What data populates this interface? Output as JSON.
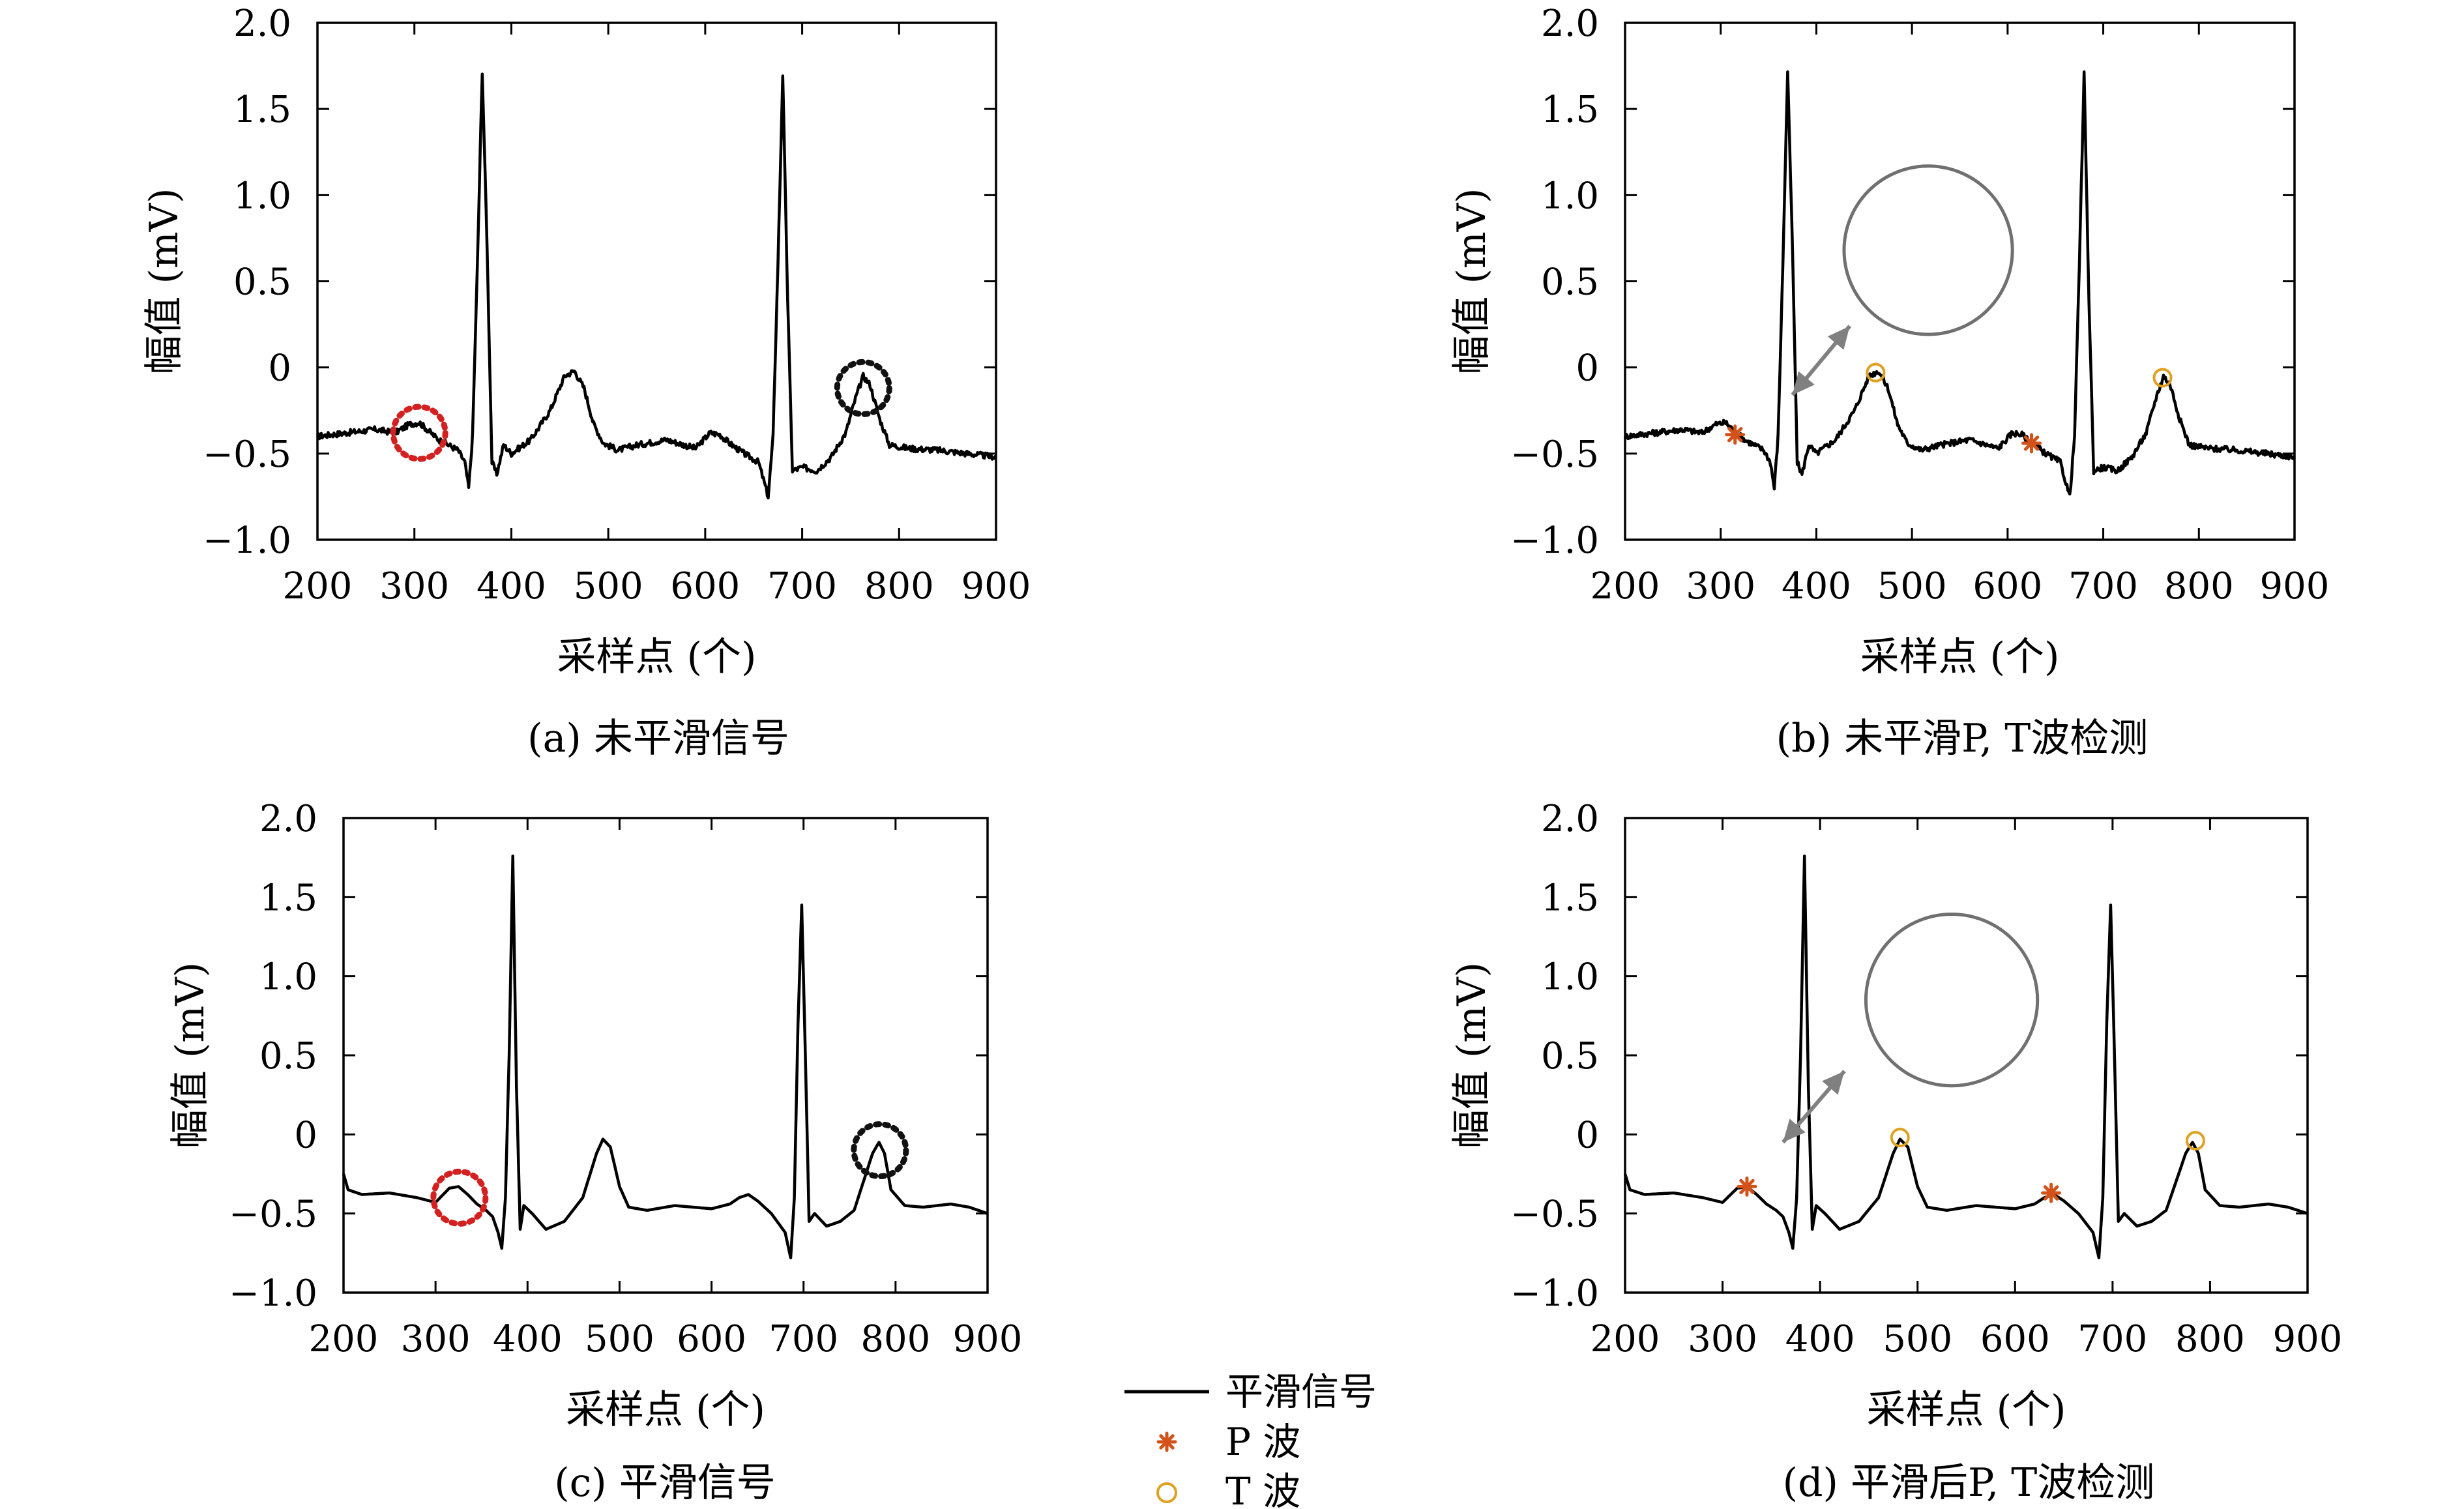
{
  "chart_data": [
    {
      "id": "a",
      "type": "line",
      "caption": "(a) 未平滑信号",
      "xlabel": "采样点 (个)",
      "ylabel": "幅值 (mV)",
      "xlim": [
        200,
        900
      ],
      "ylim": [
        -1.0,
        2.0
      ],
      "xticks": [
        "200",
        "300",
        "400",
        "500",
        "600",
        "700",
        "800",
        "900"
      ],
      "yticks": [
        "−1.0",
        "−0.5",
        "0",
        "0.5",
        "1.0",
        "1.5",
        "2.0"
      ],
      "grid": false,
      "noisy": true,
      "series": [
        {
          "x": [
            200,
            230,
            260,
            280,
            295,
            305,
            315,
            325,
            335,
            345,
            352,
            356,
            360,
            365,
            370,
            375,
            380,
            385,
            392,
            400,
            420,
            440,
            455,
            465,
            475,
            485,
            495,
            510,
            530,
            560,
            590,
            605,
            615,
            625,
            640,
            655,
            665,
            670,
            675,
            680,
            685,
            690,
            700,
            715,
            730,
            745,
            755,
            763,
            770,
            780,
            790,
            810,
            840,
            870,
            900
          ],
          "y": [
            -0.4,
            -0.38,
            -0.36,
            -0.38,
            -0.33,
            -0.32,
            -0.37,
            -0.42,
            -0.45,
            -0.48,
            -0.55,
            -0.7,
            -0.4,
            0.6,
            1.72,
            0.7,
            -0.55,
            -0.62,
            -0.45,
            -0.5,
            -0.42,
            -0.25,
            -0.05,
            -0.02,
            -0.12,
            -0.33,
            -0.44,
            -0.48,
            -0.45,
            -0.42,
            -0.47,
            -0.38,
            -0.39,
            -0.44,
            -0.5,
            -0.55,
            -0.75,
            -0.4,
            0.6,
            1.7,
            0.4,
            -0.6,
            -0.58,
            -0.6,
            -0.52,
            -0.38,
            -0.18,
            -0.05,
            -0.1,
            -0.3,
            -0.45,
            -0.47,
            -0.48,
            -0.5,
            -0.52
          ]
        }
      ],
      "highlights": [
        {
          "x": 305,
          "y": -0.38,
          "color": "#d32020"
        },
        {
          "x": 763,
          "y": -0.12,
          "color": "#111111"
        }
      ]
    },
    {
      "id": "b",
      "type": "line",
      "caption": "(b) 未平滑P, T波检测",
      "xlabel": "采样点 (个)",
      "ylabel": "幅值 (mV)",
      "xlim": [
        200,
        900
      ],
      "ylim": [
        -1.0,
        2.0
      ],
      "xticks": [
        "200",
        "300",
        "400",
        "500",
        "600",
        "700",
        "800",
        "900"
      ],
      "yticks": [
        "−1.0",
        "−0.5",
        "0",
        "0.5",
        "1.0",
        "1.5",
        "2.0"
      ],
      "grid": false,
      "noisy": true,
      "series": [
        {
          "x": [
            200,
            230,
            260,
            280,
            295,
            305,
            315,
            325,
            335,
            345,
            352,
            356,
            360,
            365,
            370,
            375,
            380,
            385,
            392,
            400,
            420,
            440,
            455,
            465,
            475,
            485,
            495,
            510,
            530,
            560,
            590,
            605,
            615,
            625,
            640,
            655,
            665,
            670,
            675,
            680,
            685,
            690,
            700,
            715,
            730,
            745,
            755,
            763,
            770,
            780,
            790,
            810,
            840,
            870,
            900
          ],
          "y": [
            -0.4,
            -0.38,
            -0.36,
            -0.38,
            -0.33,
            -0.32,
            -0.37,
            -0.42,
            -0.45,
            -0.48,
            -0.55,
            -0.7,
            -0.4,
            0.6,
            1.72,
            0.7,
            -0.55,
            -0.62,
            -0.45,
            -0.5,
            -0.42,
            -0.25,
            -0.05,
            -0.02,
            -0.12,
            -0.33,
            -0.44,
            -0.48,
            -0.45,
            -0.42,
            -0.47,
            -0.38,
            -0.39,
            -0.44,
            -0.5,
            -0.55,
            -0.75,
            -0.4,
            0.6,
            1.7,
            0.4,
            -0.6,
            -0.58,
            -0.6,
            -0.52,
            -0.38,
            -0.18,
            -0.05,
            -0.1,
            -0.3,
            -0.45,
            -0.47,
            -0.48,
            -0.5,
            -0.52
          ]
        }
      ],
      "p_wave": [
        {
          "x": 315,
          "y": -0.39
        },
        {
          "x": 625,
          "y": -0.44
        }
      ],
      "t_wave": [
        {
          "x": 462,
          "y": -0.03
        },
        {
          "x": 762,
          "y": -0.06
        }
      ],
      "inset_circle": {
        "cx": 517,
        "cy": 0.68,
        "r_x": 88
      },
      "arrow": {
        "x1": 375,
        "y1": -0.16,
        "x2": 435,
        "y2": 0.24
      }
    },
    {
      "id": "c",
      "type": "line",
      "caption": "(c) 平滑信号",
      "xlabel": "采样点 (个)",
      "ylabel": "幅值 (mV)",
      "xlim": [
        200,
        900
      ],
      "ylim": [
        -1.0,
        2.0
      ],
      "xticks": [
        "200",
        "300",
        "400",
        "500",
        "600",
        "700",
        "800",
        "900"
      ],
      "yticks": [
        "−1.0",
        "−0.5",
        "0",
        "0.5",
        "1.0",
        "1.5",
        "2.0"
      ],
      "grid": false,
      "noisy": false,
      "series": [
        {
          "x": [
            200,
            205,
            220,
            250,
            280,
            300,
            315,
            325,
            335,
            345,
            355,
            362,
            368,
            372,
            376,
            380,
            384,
            388,
            392,
            396,
            405,
            420,
            440,
            460,
            475,
            482,
            490,
            500,
            510,
            530,
            560,
            600,
            620,
            630,
            640,
            650,
            665,
            680,
            686,
            690,
            694,
            698,
            702,
            706,
            712,
            725,
            740,
            755,
            765,
            775,
            782,
            788,
            795,
            810,
            830,
            860,
            880,
            900
          ],
          "y": [
            -0.25,
            -0.35,
            -0.38,
            -0.37,
            -0.4,
            -0.43,
            -0.34,
            -0.33,
            -0.38,
            -0.44,
            -0.48,
            -0.52,
            -0.62,
            -0.72,
            -0.4,
            0.5,
            1.76,
            0.3,
            -0.6,
            -0.45,
            -0.5,
            -0.6,
            -0.55,
            -0.4,
            -0.12,
            -0.03,
            -0.08,
            -0.33,
            -0.46,
            -0.48,
            -0.45,
            -0.47,
            -0.44,
            -0.4,
            -0.38,
            -0.42,
            -0.5,
            -0.62,
            -0.78,
            -0.4,
            0.7,
            1.45,
            0.5,
            -0.55,
            -0.5,
            -0.58,
            -0.55,
            -0.48,
            -0.3,
            -0.12,
            -0.05,
            -0.12,
            -0.35,
            -0.45,
            -0.46,
            -0.44,
            -0.46,
            -0.5
          ]
        }
      ],
      "highlights": [
        {
          "x": 326,
          "y": -0.4,
          "color": "#d32020"
        },
        {
          "x": 783,
          "y": -0.1,
          "color": "#111111"
        }
      ]
    },
    {
      "id": "d",
      "type": "line",
      "caption": "(d) 平滑后P, T波检测",
      "xlabel": "采样点 (个)",
      "ylabel": "幅值 (mV)",
      "xlim": [
        200,
        900
      ],
      "ylim": [
        -1.0,
        2.0
      ],
      "xticks": [
        "200",
        "300",
        "400",
        "500",
        "600",
        "700",
        "800",
        "900"
      ],
      "yticks": [
        "−1.0",
        "−0.5",
        "0",
        "0.5",
        "1.0",
        "1.5",
        "2.0"
      ],
      "grid": false,
      "noisy": false,
      "series": [
        {
          "x": [
            200,
            205,
            220,
            250,
            280,
            300,
            315,
            325,
            335,
            345,
            355,
            362,
            368,
            372,
            376,
            380,
            384,
            388,
            392,
            396,
            405,
            420,
            440,
            460,
            475,
            482,
            490,
            500,
            510,
            530,
            560,
            600,
            620,
            630,
            640,
            650,
            665,
            680,
            686,
            690,
            694,
            698,
            702,
            706,
            712,
            725,
            740,
            755,
            765,
            775,
            782,
            788,
            795,
            810,
            830,
            860,
            880,
            900
          ],
          "y": [
            -0.25,
            -0.35,
            -0.38,
            -0.37,
            -0.4,
            -0.43,
            -0.34,
            -0.33,
            -0.38,
            -0.44,
            -0.48,
            -0.52,
            -0.62,
            -0.72,
            -0.4,
            0.5,
            1.76,
            0.3,
            -0.6,
            -0.45,
            -0.5,
            -0.6,
            -0.55,
            -0.4,
            -0.12,
            -0.03,
            -0.08,
            -0.33,
            -0.46,
            -0.48,
            -0.45,
            -0.47,
            -0.44,
            -0.4,
            -0.38,
            -0.42,
            -0.5,
            -0.62,
            -0.78,
            -0.4,
            0.7,
            1.45,
            0.5,
            -0.55,
            -0.5,
            -0.58,
            -0.55,
            -0.48,
            -0.3,
            -0.12,
            -0.05,
            -0.12,
            -0.35,
            -0.45,
            -0.46,
            -0.44,
            -0.46,
            -0.5
          ]
        }
      ],
      "p_wave": [
        {
          "x": 325,
          "y": -0.33
        },
        {
          "x": 637,
          "y": -0.37
        }
      ],
      "t_wave": [
        {
          "x": 482,
          "y": -0.02
        },
        {
          "x": 785,
          "y": -0.04
        }
      ],
      "inset_circle": {
        "cx": 535,
        "cy": 0.85,
        "r_x": 88
      },
      "arrow": {
        "x1": 362,
        "y1": -0.05,
        "x2": 425,
        "y2": 0.4
      }
    }
  ],
  "legend": {
    "items": [
      {
        "marker": "line",
        "label": "平滑信号",
        "color": "#000000"
      },
      {
        "marker": "star",
        "label": "P 波",
        "color": "#d2521a"
      },
      {
        "marker": "circle",
        "label": "T 波",
        "color": "#e0a020"
      }
    ]
  },
  "colors": {
    "signal": "#000000",
    "p_wave": "#d2521a",
    "t_wave": "#e0a020",
    "inset": "#707070",
    "arrow": "#808080"
  }
}
